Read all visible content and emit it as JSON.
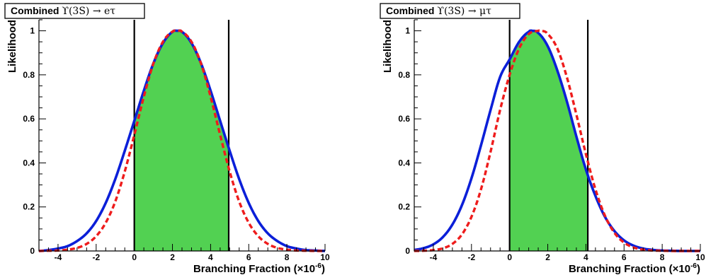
{
  "chart_data": [
    {
      "type": "line",
      "title_parts": [
        "Combined ",
        "ϒ(3S) → eτ"
      ],
      "xlabel_parts": [
        "Branching Fraction (×10",
        "-6",
        ")"
      ],
      "ylabel": "Likelihood",
      "xlim": [
        -5,
        10
      ],
      "ylim": [
        0,
        1.05
      ],
      "xticks": [
        -4,
        -2,
        0,
        2,
        4,
        6,
        8,
        10
      ],
      "yticks": [
        0,
        0.2,
        0.4,
        0.6,
        0.8,
        1
      ],
      "vertical_lines": [
        0,
        4.95
      ],
      "shaded_interval": [
        0,
        4.95
      ],
      "series": [
        {
          "style": "solid",
          "color": "#0b1fd8",
          "x": [
            -5,
            -4.5,
            -4,
            -3.5,
            -3,
            -2.5,
            -2,
            -1.5,
            -1,
            -0.5,
            0,
            0.5,
            1,
            1.5,
            2,
            2.25,
            2.5,
            3,
            3.5,
            4,
            4.5,
            5,
            5.5,
            6,
            6.5,
            7,
            7.5,
            8,
            8.5,
            9,
            9.5,
            10
          ],
          "y": [
            0.0,
            0.004,
            0.011,
            0.022,
            0.045,
            0.08,
            0.136,
            0.218,
            0.326,
            0.455,
            0.591,
            0.728,
            0.852,
            0.944,
            0.995,
            1.0,
            0.995,
            0.944,
            0.852,
            0.728,
            0.591,
            0.455,
            0.326,
            0.218,
            0.136,
            0.08,
            0.045,
            0.022,
            0.011,
            0.004,
            0.002,
            0.0
          ]
        },
        {
          "style": "dashed",
          "color": "#ee1c1c",
          "x": [
            -5,
            -4.5,
            -4,
            -3.5,
            -3,
            -2.5,
            -2,
            -1.5,
            -1,
            -0.5,
            0,
            0.5,
            1,
            1.5,
            2,
            2.3,
            2.5,
            3,
            3.5,
            4,
            4.5,
            5,
            5.5,
            6,
            6.5,
            7,
            7.5,
            8,
            8.5,
            9,
            9.5,
            10
          ],
          "y": [
            0.0,
            0.001,
            0.002,
            0.006,
            0.014,
            0.032,
            0.067,
            0.128,
            0.224,
            0.361,
            0.527,
            0.701,
            0.851,
            0.95,
            0.996,
            1.0,
            0.996,
            0.95,
            0.851,
            0.701,
            0.527,
            0.361,
            0.224,
            0.128,
            0.067,
            0.032,
            0.014,
            0.006,
            0.002,
            0.001,
            0.0,
            0.0
          ]
        }
      ]
    },
    {
      "type": "line",
      "title_parts": [
        "Combined ",
        "ϒ(3S) → μτ"
      ],
      "xlabel_parts": [
        "Branching Fraction (×10",
        "-6",
        ")"
      ],
      "ylabel": "Likelihood",
      "xlim": [
        -5,
        10
      ],
      "ylim": [
        0,
        1.05
      ],
      "xticks": [
        -4,
        -2,
        0,
        2,
        4,
        6,
        8,
        10
      ],
      "yticks": [
        0,
        0.2,
        0.4,
        0.6,
        0.8,
        1
      ],
      "vertical_lines": [
        0,
        4.1
      ],
      "shaded_interval": [
        0,
        4.1
      ],
      "series": [
        {
          "style": "solid",
          "color": "#0b1fd8",
          "x": [
            -5,
            -4.5,
            -4,
            -3.5,
            -3,
            -2.5,
            -2,
            -1.5,
            -1,
            -0.5,
            0,
            0.5,
            1,
            1.2,
            1.5,
            2,
            2.5,
            3,
            3.5,
            4,
            4.5,
            5,
            5.5,
            6,
            6.5,
            7,
            7.5,
            8,
            8.5,
            9,
            9.5,
            10
          ],
          "y": [
            0.005,
            0.013,
            0.03,
            0.063,
            0.12,
            0.208,
            0.33,
            0.48,
            0.64,
            0.79,
            0.87,
            0.95,
            0.995,
            1.0,
            0.99,
            0.93,
            0.82,
            0.68,
            0.52,
            0.37,
            0.25,
            0.155,
            0.09,
            0.048,
            0.024,
            0.011,
            0.005,
            0.002,
            0.001,
            0.0,
            0.0,
            0.0
          ]
        },
        {
          "style": "dashed",
          "color": "#ee1c1c",
          "x": [
            -5,
            -4.5,
            -4,
            -3.5,
            -3,
            -2.5,
            -2,
            -1.5,
            -1,
            -0.5,
            0,
            0.5,
            1,
            1.5,
            1.7,
            2,
            2.5,
            3,
            3.5,
            4,
            4.5,
            5,
            5.5,
            6,
            6.5,
            7,
            7.5,
            8,
            8.5,
            9,
            9.5,
            10
          ],
          "y": [
            0.0,
            0.001,
            0.004,
            0.012,
            0.032,
            0.075,
            0.155,
            0.28,
            0.45,
            0.64,
            0.8,
            0.92,
            0.985,
            1.0,
            1.0,
            0.985,
            0.92,
            0.79,
            0.62,
            0.44,
            0.28,
            0.16,
            0.082,
            0.038,
            0.016,
            0.006,
            0.002,
            0.001,
            0.0,
            0.0,
            0.0,
            0.0
          ]
        }
      ]
    }
  ]
}
